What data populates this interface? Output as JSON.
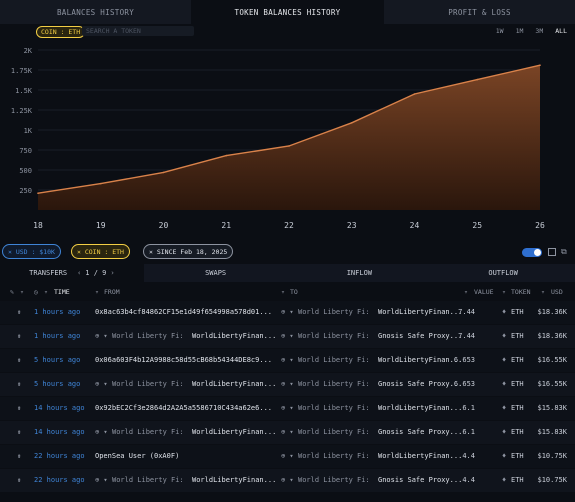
{
  "tabs": [
    {
      "label": "BALANCES HISTORY",
      "active": false
    },
    {
      "label": "TOKEN BALANCES HISTORY",
      "active": true
    },
    {
      "label": "PROFIT & LOSS",
      "active": false
    }
  ],
  "chart_filter": {
    "coin_chip": "COIN : ETH",
    "search_placeholder": "SEARCH A TOKEN"
  },
  "ranges": [
    "1W",
    "1M",
    "3M",
    "ALL"
  ],
  "chart_data": {
    "type": "area",
    "x": [
      "18",
      "19",
      "20",
      "21",
      "22",
      "23",
      "24",
      "25",
      "26"
    ],
    "values": [
      210,
      330,
      470,
      680,
      800,
      1090,
      1450,
      1630,
      1810
    ],
    "y_ticks": [
      250,
      500,
      750,
      1000,
      1250,
      1500,
      1750,
      2000
    ],
    "y_tick_labels": [
      "250",
      "500",
      "750",
      "1K",
      "1.25K",
      "1.5K",
      "1.75K",
      "2K"
    ],
    "ylim": [
      0,
      2000
    ],
    "colors": {
      "line": "#d9824a",
      "fill_top": "#7a4425",
      "fill_bottom": "#2a160c"
    }
  },
  "filters": {
    "usd_chip": "USD : $10K",
    "coin_chip": "COIN : ETH",
    "since_chip": "SINCE Feb 18, 2025",
    "toggle_on": true
  },
  "subtabs": {
    "transfers": "TRANSFERS",
    "page": "1 / 9",
    "swaps": "SWAPS",
    "inflow": "INFLOW",
    "outflow": "OUTFLOW"
  },
  "headers": {
    "time": "TIME",
    "from": "FROM",
    "to": "TO",
    "value": "VALUE",
    "token": "TOKEN",
    "usd": "USD"
  },
  "rows": [
    {
      "time": "1 hours ago",
      "from_prefix": "",
      "from": "0x8ac63b4cf84862CF15e1d49f654998a578d01...",
      "to_prefix": "World Liberty Fi:",
      "to": "WorldLibertyFinan...",
      "value": "7.44",
      "token": "ETH",
      "usd": "$18.36K"
    },
    {
      "time": "1 hours ago",
      "from_prefix": "World Liberty Fi:",
      "from": "WorldLibertyFinan...",
      "to_prefix": "World Liberty Fi:",
      "to": "Gnosis Safe Proxy...",
      "value": "7.44",
      "token": "ETH",
      "usd": "$18.36K"
    },
    {
      "time": "5 hours ago",
      "from_prefix": "",
      "from": "0x06a603F4b12A9988c58d55cB68b54344DE8c9...",
      "to_prefix": "World Liberty Fi:",
      "to": "WorldLibertyFinan...",
      "value": "6.653",
      "token": "ETH",
      "usd": "$16.55K"
    },
    {
      "time": "5 hours ago",
      "from_prefix": "World Liberty Fi:",
      "from": "WorldLibertyFinan...",
      "to_prefix": "World Liberty Fi:",
      "to": "Gnosis Safe Proxy...",
      "value": "6.653",
      "token": "ETH",
      "usd": "$16.55K"
    },
    {
      "time": "14 hours ago",
      "from_prefix": "",
      "from": "0x92bEC2Cf3e2864d2A2A5a5586710C434a62e6...",
      "to_prefix": "World Liberty Fi:",
      "to": "WorldLibertyFinan...",
      "value": "6.1",
      "token": "ETH",
      "usd": "$15.83K"
    },
    {
      "time": "14 hours ago",
      "from_prefix": "World Liberty Fi:",
      "from": "WorldLibertyFinan...",
      "to_prefix": "World Liberty Fi:",
      "to": "Gnosis Safe Proxy...",
      "value": "6.1",
      "token": "ETH",
      "usd": "$15.83K"
    },
    {
      "time": "22 hours ago",
      "from_prefix": "",
      "from": "OpenSea User (0xA0F)",
      "to_prefix": "World Liberty Fi:",
      "to": "WorldLibertyFinan...",
      "value": "4.4",
      "token": "ETH",
      "usd": "$10.75K"
    },
    {
      "time": "22 hours ago",
      "from_prefix": "World Liberty Fi:",
      "from": "WorldLibertyFinan...",
      "to_prefix": "World Liberty Fi:",
      "to": "Gnosis Safe Proxy...",
      "value": "4.4",
      "token": "ETH",
      "usd": "$10.75K"
    }
  ]
}
